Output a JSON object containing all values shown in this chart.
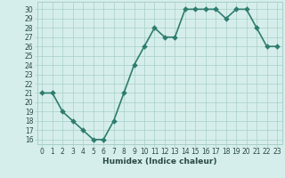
{
  "x": [
    0,
    1,
    2,
    3,
    4,
    5,
    6,
    7,
    8,
    9,
    10,
    11,
    12,
    13,
    14,
    15,
    16,
    17,
    18,
    19,
    20,
    21,
    22,
    23
  ],
  "y": [
    21,
    21,
    19,
    18,
    17,
    16,
    16,
    18,
    21,
    24,
    26,
    28,
    27,
    27,
    30,
    30,
    30,
    30,
    29,
    30,
    30,
    28,
    26,
    26
  ],
  "line_color": "#2e7d6e",
  "marker_color": "#2e7d6e",
  "bg_color": "#d6eeeb",
  "grid_color": "#a8cfc8",
  "xlabel": "Humidex (Indice chaleur)",
  "ylim_min": 15.5,
  "ylim_max": 30.8,
  "xlim_min": -0.5,
  "xlim_max": 23.5,
  "yticks": [
    16,
    17,
    18,
    19,
    20,
    21,
    22,
    23,
    24,
    25,
    26,
    27,
    28,
    29,
    30
  ],
  "xticks": [
    0,
    1,
    2,
    3,
    4,
    5,
    6,
    7,
    8,
    9,
    10,
    11,
    12,
    13,
    14,
    15,
    16,
    17,
    18,
    19,
    20,
    21,
    22,
    23
  ],
  "xtick_labels": [
    "0",
    "1",
    "2",
    "3",
    "4",
    "5",
    "6",
    "7",
    "8",
    "9",
    "10",
    "11",
    "12",
    "13",
    "14",
    "15",
    "16",
    "17",
    "18",
    "19",
    "20",
    "21",
    "22",
    "23"
  ],
  "tick_fontsize": 5.5,
  "xlabel_fontsize": 6.5,
  "font_color": "#2a4a44",
  "line_width": 1.2,
  "marker_size": 3.0
}
